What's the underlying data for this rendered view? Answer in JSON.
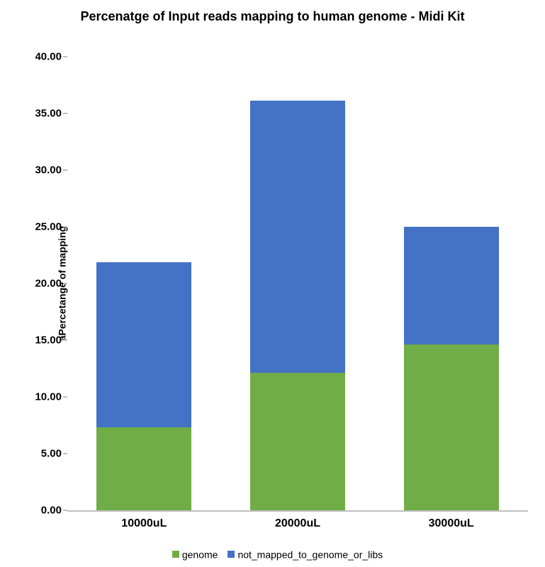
{
  "chart": {
    "type": "stacked-bar",
    "title": "Percenatge of Input reads mapping to human genome - Midi Kit",
    "title_fontsize": 18,
    "ylabel": "aPercetange of mapping",
    "ylabel_fontsize": 14,
    "xlabel_fontsize": 16,
    "legend_fontsize": 14,
    "tick_fontsize": 15,
    "categories": [
      "10000uL",
      "20000uL",
      "30000uL"
    ],
    "series": [
      {
        "name": "genome",
        "color": "#70ad47",
        "values": [
          7.3,
          12.1,
          14.6
        ]
      },
      {
        "name": "not_mapped_to_genome_or_libs",
        "color": "#4472c4",
        "values": [
          14.6,
          24.0,
          10.4
        ]
      }
    ],
    "ylim": [
      0,
      40
    ],
    "ytick_step": 5,
    "ytick_decimals": 2,
    "bar_width": 0.62,
    "background_color": "#ffffff",
    "axis_color": "#bfbfbf",
    "text_color": "#000000"
  }
}
